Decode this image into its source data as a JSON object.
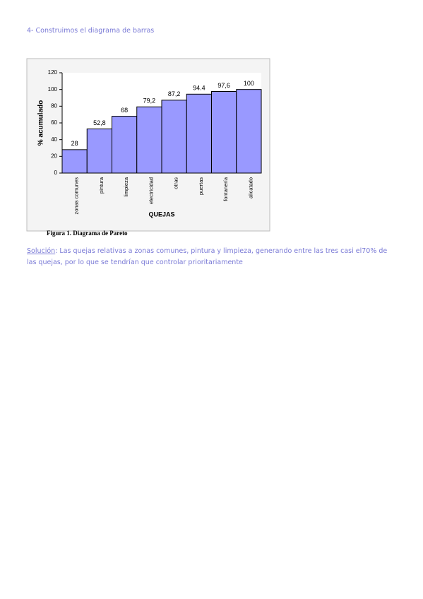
{
  "heading": "4- Construimos el diagrama de barras",
  "chart_data": {
    "type": "bar",
    "categories": [
      "zonas comunes",
      "pintura",
      "limpieza",
      "electricidad",
      "otras",
      "puertas",
      "fontanería",
      "alicatado"
    ],
    "values": [
      28,
      52.8,
      68,
      79.2,
      87.2,
      94.4,
      97.6,
      100
    ],
    "value_labels": [
      "28",
      "52,8",
      "68",
      "79,2",
      "87,2",
      "94.4",
      "97,6",
      "100"
    ],
    "color": "#9999ff",
    "ylim": [
      0,
      120
    ],
    "yticks": [
      0,
      20,
      40,
      60,
      80,
      100,
      120
    ],
    "ylabel": "% acumulado",
    "xlabel": "QUEJAS"
  },
  "caption": "Figura 1. Diagrama de Pareto",
  "solution": {
    "label": "Solución",
    "text": ": Las quejas relativas a zonas comunes, pintura y limpieza, generando entre las tres casi el70% de las quejas, por lo que se tendrían que controlar prioritariamente"
  }
}
